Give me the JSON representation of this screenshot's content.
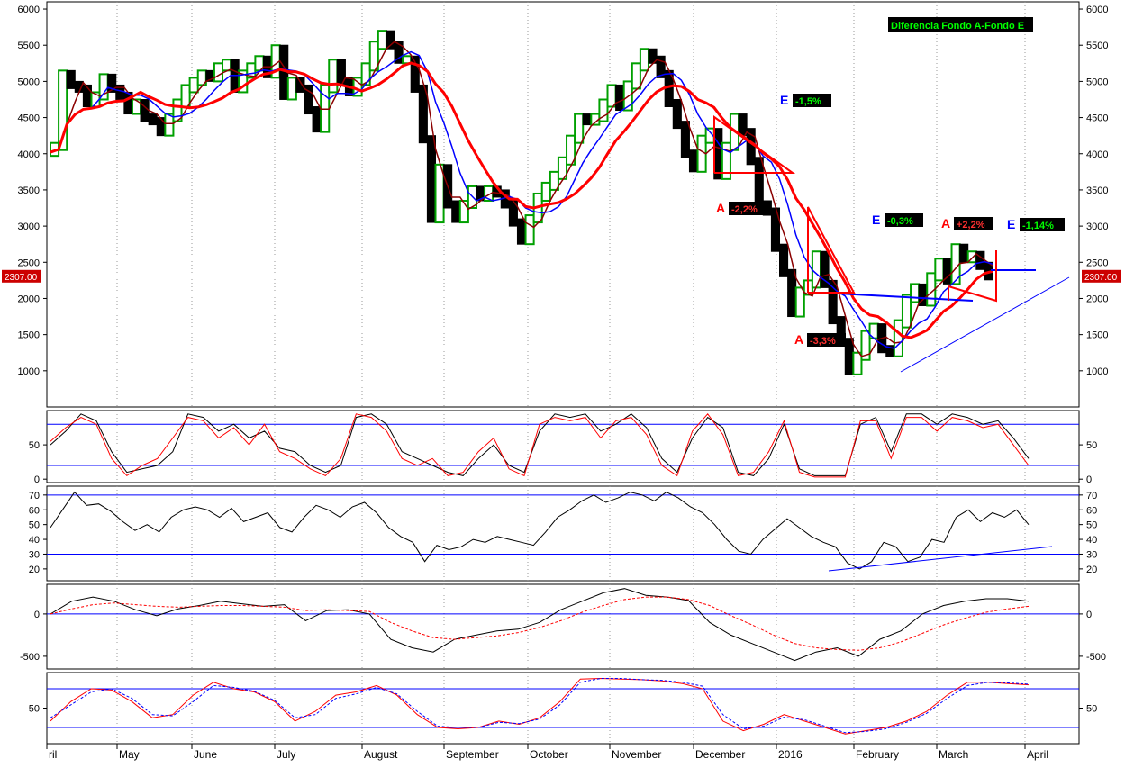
{
  "chart_data": [
    {
      "type": "candlestick",
      "title": "Diferencia Fondo A-Fondo E",
      "ylim": [
        500,
        6100
      ],
      "y_ticks": [
        1000,
        1500,
        2000,
        2500,
        3000,
        3500,
        4000,
        4500,
        5000,
        5500,
        6000
      ],
      "y_tick_labels": [
        "1000",
        "1500",
        "2000",
        "2500",
        "3000",
        "3500",
        "4000",
        "4500",
        "5000",
        "5500",
        "6000"
      ],
      "last_value_label": "2307.00",
      "last_value": 2307,
      "grid": "vertical-dotted-monthly",
      "price_close_series": [
        [
          0,
          4020
        ],
        [
          5,
          4100
        ],
        [
          10,
          5100
        ],
        [
          15,
          4950
        ],
        [
          20,
          4900
        ],
        [
          25,
          4700
        ],
        [
          30,
          4800
        ],
        [
          35,
          5050
        ],
        [
          40,
          4900
        ],
        [
          45,
          4800
        ],
        [
          50,
          4600
        ],
        [
          55,
          4700
        ],
        [
          60,
          4500
        ],
        [
          65,
          4450
        ],
        [
          70,
          4300
        ],
        [
          75,
          4500
        ],
        [
          80,
          4700
        ],
        [
          85,
          4900
        ],
        [
          90,
          5000
        ],
        [
          95,
          5100
        ],
        [
          100,
          5050
        ],
        [
          105,
          5200
        ],
        [
          110,
          5250
        ],
        [
          115,
          4900
        ],
        [
          120,
          5100
        ],
        [
          125,
          5200
        ],
        [
          130,
          5300
        ],
        [
          135,
          5100
        ],
        [
          140,
          5450
        ],
        [
          145,
          4800
        ],
        [
          150,
          5000
        ],
        [
          155,
          4900
        ],
        [
          160,
          4600
        ],
        [
          165,
          4350
        ],
        [
          170,
          4900
        ],
        [
          175,
          5250
        ],
        [
          180,
          5000
        ],
        [
          185,
          4850
        ],
        [
          190,
          5000
        ],
        [
          195,
          5200
        ],
        [
          200,
          5500
        ],
        [
          205,
          5650
        ],
        [
          210,
          5500
        ],
        [
          215,
          5300
        ],
        [
          220,
          5300
        ],
        [
          225,
          4900
        ],
        [
          230,
          4200
        ],
        [
          235,
          3100
        ],
        [
          240,
          3800
        ],
        [
          245,
          3300
        ],
        [
          250,
          3100
        ],
        [
          255,
          3300
        ],
        [
          260,
          3500
        ],
        [
          265,
          3400
        ],
        [
          270,
          3500
        ],
        [
          275,
          3450
        ],
        [
          280,
          3300
        ],
        [
          285,
          3050
        ],
        [
          290,
          2800
        ],
        [
          295,
          3100
        ],
        [
          300,
          3400
        ],
        [
          305,
          3550
        ],
        [
          310,
          3700
        ],
        [
          315,
          3900
        ],
        [
          320,
          4200
        ],
        [
          325,
          4500
        ],
        [
          330,
          4450
        ],
        [
          335,
          4500
        ],
        [
          340,
          4700
        ],
        [
          345,
          4900
        ],
        [
          350,
          4650
        ],
        [
          355,
          4950
        ],
        [
          360,
          5200
        ],
        [
          365,
          5400
        ],
        [
          370,
          5300
        ],
        [
          375,
          5100
        ],
        [
          380,
          4700
        ],
        [
          385,
          4400
        ],
        [
          390,
          4000
        ],
        [
          395,
          3800
        ],
        [
          400,
          4200
        ],
        [
          405,
          4300
        ],
        [
          410,
          3700
        ],
        [
          415,
          4100
        ],
        [
          420,
          4500
        ],
        [
          425,
          4300
        ],
        [
          430,
          3900
        ],
        [
          435,
          3300
        ],
        [
          440,
          3200
        ],
        [
          445,
          2700
        ],
        [
          450,
          2350
        ],
        [
          455,
          1800
        ],
        [
          460,
          2100
        ],
        [
          465,
          2200
        ],
        [
          470,
          2600
        ],
        [
          475,
          2200
        ],
        [
          480,
          1700
        ],
        [
          485,
          1400
        ],
        [
          490,
          1000
        ],
        [
          495,
          1200
        ],
        [
          500,
          1500
        ],
        [
          505,
          1600
        ],
        [
          510,
          1300
        ],
        [
          515,
          1250
        ],
        [
          520,
          1650
        ],
        [
          525,
          2000
        ],
        [
          530,
          2150
        ],
        [
          535,
          1950
        ],
        [
          540,
          2300
        ],
        [
          545,
          2500
        ],
        [
          550,
          2250
        ],
        [
          555,
          2700
        ],
        [
          560,
          2550
        ],
        [
          565,
          2600
        ],
        [
          570,
          2450
        ],
        [
          575,
          2307
        ]
      ],
      "annotations": [
        {
          "label": "E",
          "tag": "-1,5%",
          "kind": "E"
        },
        {
          "label": "A",
          "tag": "-2,2%",
          "kind": "A"
        },
        {
          "label": "E",
          "tag": "-0,3%",
          "kind": "E"
        },
        {
          "label": "A",
          "tag": "+2,2%",
          "kind": "A"
        },
        {
          "label": "E",
          "tag": "-1,14%",
          "kind": "E"
        },
        {
          "label": "A",
          "tag": "-3,3%",
          "kind": "A"
        }
      ]
    },
    {
      "type": "line",
      "name_hint": "stochastic",
      "ylim": [
        -5,
        100
      ],
      "y_ticks": [
        0,
        50
      ],
      "y_tick_labels": [
        "0",
        "50"
      ],
      "bands": [
        80,
        20
      ],
      "series": [
        {
          "color": "#000000",
          "values": [
            50,
            70,
            95,
            85,
            40,
            10,
            15,
            20,
            40,
            95,
            90,
            70,
            80,
            60,
            70,
            45,
            40,
            20,
            10,
            20,
            90,
            95,
            80,
            40,
            30,
            20,
            10,
            5,
            30,
            50,
            20,
            10,
            70,
            95,
            90,
            95,
            70,
            80,
            95,
            75,
            30,
            10,
            60,
            90,
            75,
            10,
            5,
            30,
            80,
            15,
            5,
            5,
            5,
            80,
            90,
            40,
            95,
            95,
            80,
            95,
            90,
            80,
            85,
            60,
            30
          ],
          "x_step": 9
        },
        {
          "color": "#ff0000",
          "values": [
            55,
            75,
            90,
            80,
            30,
            5,
            20,
            30,
            60,
            90,
            85,
            60,
            75,
            50,
            80,
            40,
            30,
            15,
            5,
            30,
            95,
            90,
            70,
            30,
            20,
            30,
            5,
            10,
            40,
            60,
            15,
            5,
            80,
            90,
            85,
            90,
            60,
            85,
            90,
            65,
            20,
            5,
            70,
            95,
            65,
            5,
            10,
            40,
            85,
            10,
            3,
            3,
            3,
            85,
            85,
            30,
            90,
            90,
            70,
            90,
            85,
            75,
            80,
            50,
            20
          ],
          "x_step": 9
        }
      ]
    },
    {
      "type": "line",
      "name_hint": "rsi",
      "ylim": [
        12,
        76
      ],
      "y_ticks": [
        20,
        30,
        40,
        50,
        60,
        70
      ],
      "y_tick_labels": [
        "20",
        "30",
        "40",
        "50",
        "60",
        "70"
      ],
      "bands": [
        70,
        30
      ],
      "series": [
        {
          "color": "#000000",
          "values": [
            48,
            60,
            72,
            63,
            64,
            59,
            52,
            46,
            50,
            45,
            55,
            60,
            62,
            60,
            55,
            61,
            52,
            55,
            58,
            48,
            45,
            55,
            63,
            60,
            55,
            62,
            65,
            58,
            48,
            42,
            38,
            25,
            36,
            33,
            35,
            40,
            38,
            42,
            40,
            38,
            36,
            45,
            55,
            60,
            66,
            70,
            65,
            68,
            72,
            70,
            66,
            72,
            68,
            62,
            58,
            50,
            40,
            32,
            30,
            40,
            47,
            54,
            48,
            42,
            38,
            35,
            24,
            20,
            25,
            38,
            35,
            25,
            28,
            40,
            38,
            55,
            60,
            52,
            58,
            55,
            60,
            50
          ],
          "x_step": 14
        }
      ]
    },
    {
      "type": "line",
      "name_hint": "macd",
      "ylim": [
        -650,
        350
      ],
      "y_ticks": [
        -500,
        0
      ],
      "y_tick_labels": [
        "-500",
        "0"
      ],
      "bands": [
        0
      ],
      "series": [
        {
          "color": "#000000",
          "values": [
            0,
            150,
            200,
            150,
            50,
            -20,
            60,
            100,
            150,
            120,
            90,
            110,
            -80,
            40,
            50,
            0,
            -300,
            -400,
            -450,
            -300,
            -250,
            -200,
            -180,
            -100,
            50,
            150,
            250,
            300,
            220,
            200,
            160,
            -100,
            -250,
            -350,
            -450,
            -550,
            -450,
            -400,
            -500,
            -300,
            -200,
            0,
            100,
            150,
            180,
            180,
            150
          ],
          "x_step": 24
        },
        {
          "color": "#ff0000",
          "dash": true,
          "values": [
            0,
            60,
            110,
            130,
            110,
            90,
            80,
            90,
            100,
            100,
            90,
            80,
            40,
            50,
            40,
            30,
            -100,
            -200,
            -280,
            -300,
            -280,
            -260,
            -220,
            -160,
            -80,
            20,
            100,
            170,
            200,
            200,
            170,
            100,
            -20,
            -130,
            -250,
            -350,
            -400,
            -420,
            -430,
            -400,
            -330,
            -230,
            -130,
            -50,
            20,
            60,
            90
          ],
          "x_step": 24
        }
      ]
    },
    {
      "type": "line",
      "name_hint": "slow-stochastic",
      "ylim": [
        -5,
        105
      ],
      "y_ticks": [
        50
      ],
      "y_tick_labels": [
        "50"
      ],
      "bands": [
        80,
        20
      ],
      "series": [
        {
          "color": "#ff0000",
          "values": [
            30,
            60,
            80,
            78,
            60,
            35,
            40,
            70,
            90,
            80,
            75,
            60,
            30,
            45,
            70,
            75,
            85,
            70,
            40,
            20,
            18,
            20,
            30,
            25,
            35,
            60,
            95,
            96,
            95,
            94,
            92,
            88,
            80,
            30,
            15,
            25,
            40,
            30,
            20,
            10,
            15,
            20,
            30,
            45,
            70,
            90,
            90,
            88,
            86
          ],
          "x_step": 23
        },
        {
          "color": "#0000ff",
          "dash": true,
          "values": [
            35,
            55,
            75,
            80,
            65,
            40,
            38,
            60,
            85,
            82,
            76,
            62,
            35,
            40,
            65,
            72,
            82,
            72,
            45,
            22,
            20,
            20,
            28,
            26,
            33,
            55,
            90,
            96,
            96,
            94,
            93,
            90,
            84,
            40,
            18,
            22,
            36,
            32,
            22,
            12,
            14,
            18,
            28,
            42,
            65,
            85,
            90,
            89,
            87
          ],
          "x_step": 23
        }
      ]
    }
  ],
  "x_axis": {
    "tick_labels": [
      "ril",
      "May",
      "June",
      "July",
      "August",
      "September",
      "October",
      "November",
      "December",
      "2016",
      "February",
      "March",
      "April"
    ]
  },
  "colors": {
    "up_bar": "#00a000",
    "down_bar": "#000000",
    "ma_fast": "#8b0000",
    "ma_mid": "#0000ff",
    "ma_slow": "#ff0000",
    "band": "#0000ff",
    "grid": "#999999",
    "label_bg": "#000000",
    "label_green_text": "#00ff00",
    "label_red_text": "#ff3030",
    "value_tag_bg": "#cc0000"
  }
}
